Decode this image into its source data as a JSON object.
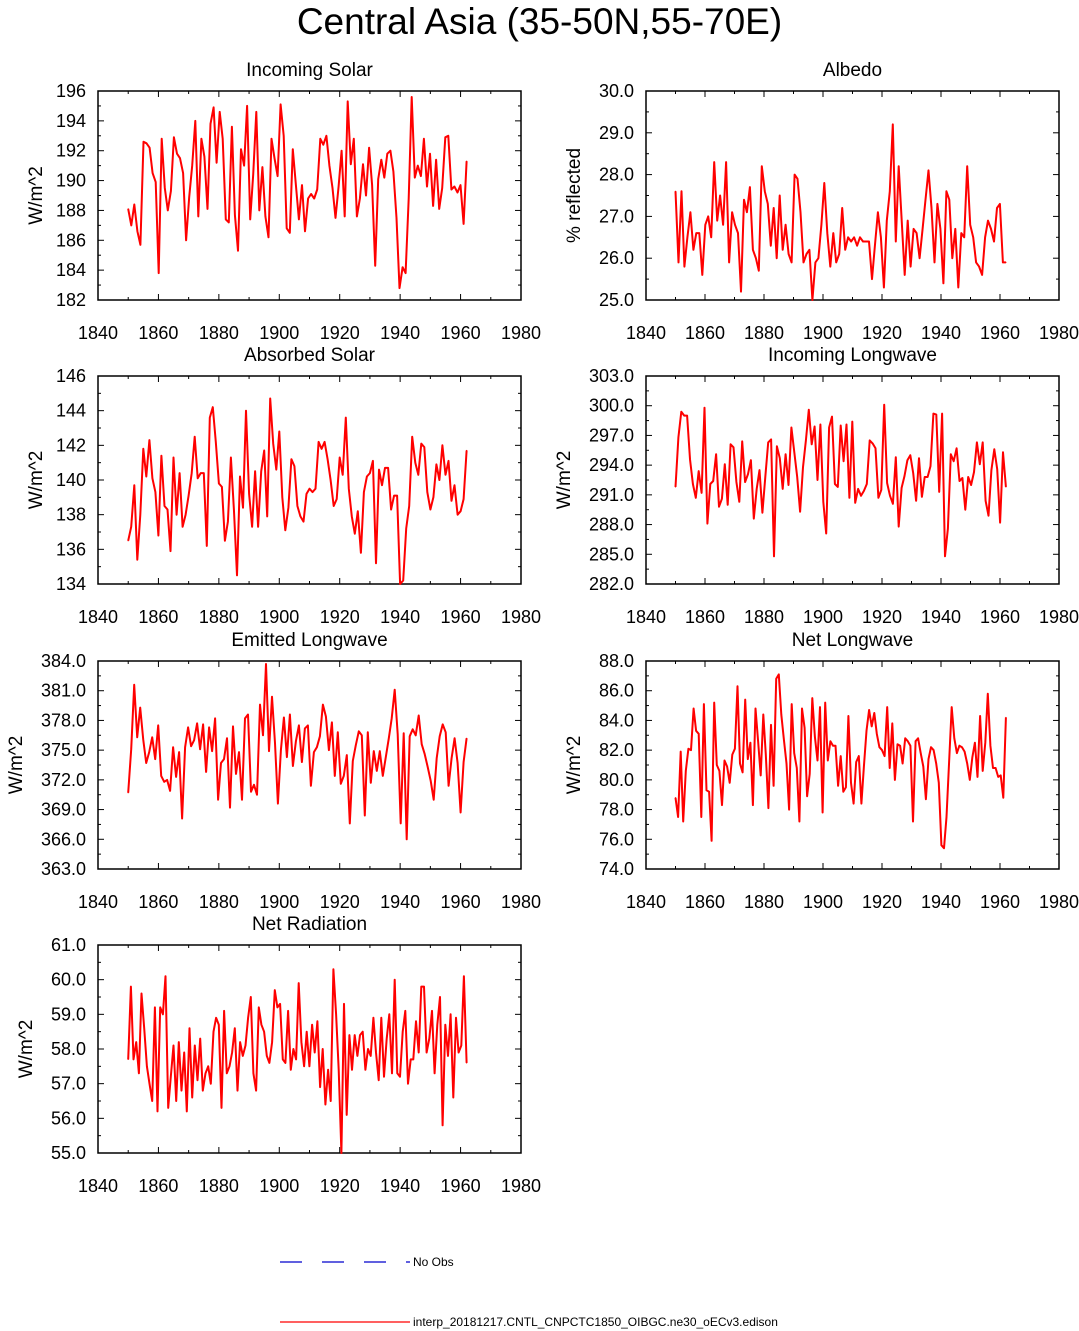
{
  "title": "Central Asia (35-50N,55-70E)",
  "colors": {
    "series": "#ff0000",
    "obs": "#0000cc",
    "axis": "#000000"
  },
  "legend": {
    "obs_label": "No Obs",
    "model_label": "interp_20181217.CNTL_CNPCTC1850_OIBGC.ne30_oECv3.edison"
  },
  "chart_data": [
    {
      "type": "line",
      "title": "Incoming Solar",
      "ylabel": "W/m^2",
      "xlim": [
        1840,
        1980
      ],
      "ylim": [
        182,
        196
      ],
      "xticks": [
        "1840",
        "1860",
        "1880",
        "1900",
        "1920",
        "1940",
        "1960",
        "1980"
      ],
      "yticks": [
        "182",
        "184",
        "186",
        "188",
        "190",
        "192",
        "194",
        "196"
      ],
      "series": [
        {
          "x_start": 1850,
          "values": [
            188.1,
            187.0,
            188.4,
            186.6,
            185.7,
            192.6,
            192.5,
            192.2,
            190.5,
            189.9,
            183.8,
            192.8,
            189.5,
            188.0,
            189.3,
            192.9,
            191.8,
            191.5,
            190.5,
            186.0,
            188.9,
            191.0,
            194.0,
            187.6,
            192.8,
            191.6,
            188.1,
            193.8,
            194.9,
            191.2,
            194.6,
            192.8,
            187.4,
            187.2,
            193.6,
            187.7,
            185.3,
            192.1,
            191.0,
            195.0,
            187.4,
            190.4,
            194.6,
            188.0,
            190.9,
            187.6,
            186.2,
            192.8,
            191.5,
            190.3,
            195.1,
            193.0,
            186.8,
            186.5,
            192.1,
            189.7,
            187.4,
            189.7,
            186.6,
            188.8,
            189.1,
            188.8,
            189.4,
            192.8,
            192.4,
            193.0,
            191.0,
            189.5,
            187.5,
            189.6,
            192.0,
            187.6,
            195.3,
            191.1,
            192.8,
            187.6,
            188.8,
            191.1,
            189.0,
            192.2,
            189.7,
            184.3,
            190.1,
            191.4,
            190.2,
            191.8,
            192.0,
            190.6,
            187.5,
            182.8,
            184.2,
            183.8,
            188.8,
            195.6,
            190.2,
            191.0,
            190.3,
            192.8,
            189.6,
            191.8,
            188.3,
            191.4,
            188.1,
            189.5,
            192.9,
            193.0,
            189.4,
            189.6,
            189.2,
            189.7,
            187.1,
            191.3
          ]
        }
      ]
    },
    {
      "type": "line",
      "title": "Albedo",
      "ylabel": "% reflected",
      "xlim": [
        1840,
        1980
      ],
      "ylim": [
        25,
        30
      ],
      "xticks": [
        "1840",
        "1860",
        "1880",
        "1900",
        "1920",
        "1940",
        "1960",
        "1980"
      ],
      "yticks": [
        "25.0",
        "26.0",
        "27.0",
        "28.0",
        "29.0",
        "30.0"
      ],
      "series": [
        {
          "x_start": 1850,
          "values": [
            27.6,
            25.9,
            27.6,
            25.8,
            26.5,
            27.1,
            26.2,
            26.6,
            26.6,
            25.6,
            26.8,
            27.0,
            26.5,
            28.3,
            26.9,
            27.5,
            26.8,
            28.3,
            25.9,
            27.1,
            26.8,
            26.6,
            25.2,
            27.4,
            27.1,
            27.7,
            26.2,
            26.0,
            25.7,
            28.2,
            27.6,
            27.3,
            26.3,
            27.2,
            26.0,
            27.5,
            26.2,
            26.8,
            26.1,
            25.9,
            28.0,
            27.9,
            27.1,
            25.9,
            26.1,
            26.2,
            25.0,
            25.9,
            26.0,
            26.8,
            27.8,
            26.6,
            25.8,
            26.6,
            25.9,
            26.1,
            27.2,
            26.2,
            26.5,
            26.4,
            26.5,
            26.3,
            26.5,
            26.4,
            26.4,
            26.4,
            25.5,
            26.3,
            27.1,
            26.5,
            25.3,
            26.9,
            27.6,
            29.2,
            26.4,
            28.2,
            26.9,
            25.6,
            26.9,
            25.8,
            26.7,
            26.6,
            26.0,
            26.7,
            27.4,
            28.1,
            27.2,
            25.9,
            27.3,
            26.7,
            25.4,
            27.6,
            27.4,
            26.0,
            26.7,
            25.3,
            26.6,
            26.5,
            28.2,
            26.8,
            26.5,
            25.9,
            25.8,
            25.6,
            26.5,
            26.9,
            26.7,
            26.4,
            27.2,
            27.3,
            25.9,
            25.9
          ]
        }
      ]
    },
    {
      "type": "line",
      "title": "Absorbed Solar",
      "ylabel": "W/m^2",
      "xlim": [
        1840,
        1980
      ],
      "ylim": [
        134,
        146
      ],
      "xticks": [
        "1840",
        "1860",
        "1880",
        "1900",
        "1920",
        "1940",
        "1960",
        "1980"
      ],
      "yticks": [
        "134",
        "136",
        "138",
        "140",
        "142",
        "144",
        "146"
      ],
      "series": [
        {
          "x_start": 1850,
          "values": [
            136.5,
            137.3,
            139.7,
            135.4,
            138.0,
            141.8,
            140.2,
            142.3,
            140.1,
            139.3,
            136.8,
            141.4,
            138.5,
            138.3,
            135.9,
            141.3,
            138.0,
            140.4,
            137.3,
            138.0,
            139.1,
            140.4,
            142.5,
            140.1,
            140.4,
            140.4,
            136.2,
            143.6,
            144.2,
            142.2,
            139.8,
            139.6,
            136.5,
            137.6,
            141.3,
            138.2,
            134.5,
            140.2,
            138.4,
            144.0,
            139.2,
            137.3,
            140.5,
            137.3,
            140.5,
            141.7,
            137.9,
            144.7,
            142.1,
            140.6,
            142.8,
            139.0,
            137.1,
            138.4,
            141.2,
            140.8,
            138.5,
            137.9,
            137.6,
            139.2,
            139.5,
            139.3,
            139.5,
            142.2,
            141.8,
            142.2,
            141.2,
            140.0,
            138.5,
            138.9,
            141.3,
            140.3,
            143.6,
            139.5,
            137.9,
            136.9,
            138.2,
            135.8,
            139.3,
            140.2,
            140.4,
            141.1,
            135.2,
            140.6,
            139.7,
            140.7,
            140.7,
            138.3,
            139.1,
            139.1,
            134.0,
            134.2,
            137.2,
            138.5,
            142.5,
            141.0,
            140.3,
            142.1,
            141.9,
            139.3,
            138.3,
            139.0,
            140.9,
            140.0,
            142.0,
            140.3,
            141.1,
            138.8,
            139.7,
            138.0,
            138.2,
            138.9,
            141.7
          ]
        }
      ]
    },
    {
      "type": "line",
      "title": "Incoming Longwave",
      "ylabel": "W/m^2",
      "xlim": [
        1840,
        1980
      ],
      "ylim": [
        282,
        303
      ],
      "xticks": [
        "1840",
        "1860",
        "1880",
        "1900",
        "1920",
        "1940",
        "1960",
        "1980"
      ],
      "yticks": [
        "282.0",
        "285.0",
        "288.0",
        "291.0",
        "294.0",
        "297.0",
        "300.0",
        "303.0"
      ],
      "series": [
        {
          "x_start": 1850,
          "values": [
            291.8,
            296.8,
            299.4,
            299.0,
            299.0,
            294.6,
            292.1,
            290.7,
            293.4,
            291.2,
            299.8,
            288.1,
            292.1,
            292.4,
            295.1,
            289.8,
            290.6,
            294.1,
            290.0,
            296.1,
            295.8,
            292.3,
            290.3,
            296.4,
            292.3,
            293.1,
            294.5,
            288.6,
            291.6,
            293.5,
            289.2,
            292.8,
            296.3,
            296.6,
            284.8,
            295.9,
            294.7,
            291.6,
            295.1,
            292.0,
            297.8,
            295.3,
            292.8,
            289.3,
            293.8,
            296.5,
            299.6,
            296.1,
            297.9,
            292.5,
            298.1,
            290.3,
            287.1,
            297.8,
            298.9,
            292.1,
            291.8,
            298.0,
            294.4,
            298.1,
            290.7,
            298.4,
            290.2,
            291.6,
            290.9,
            291.4,
            292.1,
            296.5,
            296.2,
            295.7,
            290.7,
            291.5,
            300.1,
            292.2,
            290.9,
            290.1,
            294.8,
            287.8,
            291.7,
            292.9,
            294.5,
            295.0,
            293.2,
            290.4,
            294.7,
            290.8,
            292.8,
            292.8,
            293.9,
            299.2,
            299.1,
            291.3,
            299.2,
            284.8,
            287.6,
            295.1,
            294.4,
            295.7,
            292.4,
            292.7,
            289.5,
            292.8,
            292.0,
            293.3,
            296.3,
            294.1,
            296.3,
            290.4,
            288.9,
            293.5,
            295.6,
            293.6,
            288.2,
            295.3,
            291.8
          ]
        }
      ]
    },
    {
      "type": "line",
      "title": "Emitted Longwave",
      "ylabel": "W/m^2",
      "xlim": [
        1840,
        1980
      ],
      "ylim": [
        363,
        384
      ],
      "xticks": [
        "1840",
        "1860",
        "1880",
        "1900",
        "1920",
        "1940",
        "1960",
        "1980"
      ],
      "yticks": [
        "363.0",
        "366.0",
        "369.0",
        "372.0",
        "375.0",
        "378.0",
        "381.0",
        "384.0"
      ],
      "series": [
        {
          "x_start": 1850,
          "values": [
            370.7,
            375.1,
            381.6,
            376.3,
            379.3,
            376.1,
            373.7,
            374.8,
            376.3,
            374.1,
            377.5,
            372.4,
            371.8,
            372.0,
            370.9,
            375.3,
            372.3,
            374.8,
            368.1,
            375.3,
            377.3,
            375.4,
            376.0,
            377.7,
            375.1,
            377.6,
            372.8,
            377.3,
            374.9,
            378.2,
            370.0,
            373.7,
            374.1,
            376.2,
            369.2,
            377.4,
            372.6,
            374.8,
            370.0,
            378.2,
            378.6,
            370.8,
            371.5,
            370.5,
            379.6,
            376.5,
            383.7,
            374.9,
            380.4,
            375.7,
            369.6,
            375.0,
            378.3,
            374.3,
            378.6,
            373.4,
            375.9,
            377.5,
            373.8,
            377.2,
            377.5,
            371.4,
            374.8,
            375.3,
            376.4,
            379.6,
            378.4,
            375.0,
            377.8,
            372.4,
            376.8,
            371.6,
            372.4,
            374.5,
            367.6,
            373.9,
            375.5,
            376.9,
            376.5,
            368.4,
            376.8,
            371.7,
            374.9,
            372.9,
            374.9,
            372.4,
            374.3,
            376.2,
            378.2,
            381.1,
            376.6,
            367.6,
            376.7,
            366.0,
            376.4,
            377.1,
            376.5,
            378.5,
            375.6,
            374.6,
            373.3,
            371.9,
            370.0,
            374.2,
            376.4,
            377.6,
            376.8,
            371.4,
            374.2,
            376.2,
            373.7,
            368.7,
            373.8,
            376.2
          ]
        }
      ]
    },
    {
      "type": "line",
      "title": "Net Longwave",
      "ylabel": "W/m^2",
      "xlim": [
        1840,
        1980
      ],
      "ylim": [
        74,
        88
      ],
      "xticks": [
        "1840",
        "1860",
        "1880",
        "1900",
        "1920",
        "1940",
        "1960",
        "1980"
      ],
      "yticks": [
        "74.0",
        "76.0",
        "78.0",
        "80.0",
        "82.0",
        "84.0",
        "86.0",
        "88.0"
      ],
      "series": [
        {
          "x_start": 1850,
          "values": [
            78.8,
            77.5,
            81.9,
            77.2,
            80.6,
            82.1,
            82.0,
            84.8,
            83.3,
            83.1,
            77.5,
            85.1,
            79.3,
            79.2,
            75.9,
            85.2,
            81.0,
            80.6,
            78.3,
            81.3,
            80.9,
            79.8,
            81.7,
            82.1,
            86.3,
            81.1,
            80.5,
            85.4,
            81.4,
            82.5,
            78.3,
            84.8,
            82.6,
            80.3,
            84.4,
            81.7,
            78.1,
            83.7,
            79.6,
            86.8,
            87.1,
            84.4,
            82.7,
            81.1,
            78.0,
            85.1,
            81.8,
            80.8,
            77.2,
            84.8,
            83.5,
            78.9,
            80.4,
            85.5,
            82.9,
            81.3,
            84.9,
            77.8,
            85.2,
            81.3,
            82.6,
            82.3,
            82.3,
            79.6,
            81.6,
            79.2,
            79.5,
            84.3,
            79.8,
            78.4,
            81.2,
            81.6,
            78.4,
            80.9,
            83.3,
            84.7,
            83.6,
            84.5,
            83.1,
            82.2,
            82.0,
            81.6,
            84.9,
            80.8,
            83.8,
            80.0,
            82.4,
            82.3,
            81.1,
            82.8,
            82.6,
            82.3,
            77.2,
            82.6,
            82.8,
            81.8,
            80.9,
            78.7,
            81.4,
            82.2,
            82.0,
            81.1,
            79.8,
            75.6,
            75.4,
            77.5,
            81.2,
            84.9,
            82.8,
            81.8,
            82.3,
            82.2,
            81.9,
            81.1,
            80.0,
            81.5,
            82.5,
            80.2,
            84.3,
            80.6,
            82.5,
            85.8,
            82.3,
            80.8,
            80.8,
            80.2,
            80.3,
            78.8,
            84.2
          ]
        }
      ]
    },
    {
      "type": "line",
      "title": "Net Radiation",
      "ylabel": "W/m^2",
      "xlim": [
        1840,
        1980
      ],
      "ylim": [
        55,
        61
      ],
      "xticks": [
        "1840",
        "1860",
        "1880",
        "1900",
        "1920",
        "1940",
        "1960",
        "1980"
      ],
      "yticks": [
        "55.0",
        "56.0",
        "57.0",
        "58.0",
        "59.0",
        "60.0",
        "61.0"
      ],
      "series": [
        {
          "x_start": 1850,
          "values": [
            57.7,
            59.8,
            57.7,
            58.2,
            57.3,
            59.6,
            58.6,
            57.5,
            57.0,
            56.5,
            59.2,
            56.2,
            59.2,
            59.0,
            60.1,
            56.3,
            57.2,
            58.1,
            56.5,
            58.2,
            56.8,
            57.9,
            56.2,
            58.6,
            56.6,
            58.1,
            57.1,
            58.3,
            56.8,
            57.3,
            57.5,
            57.0,
            58.5,
            58.9,
            58.7,
            56.3,
            59.1,
            57.3,
            57.5,
            57.9,
            58.6,
            56.8,
            58.2,
            57.8,
            58.1,
            58.9,
            59.5,
            57.3,
            56.8,
            59.2,
            58.7,
            58.5,
            57.8,
            57.6,
            58.2,
            59.7,
            59.2,
            59.3,
            57.7,
            57.6,
            59.1,
            57.4,
            58.0,
            57.7,
            59.9,
            58.2,
            57.5,
            58.5,
            57.5,
            58.7,
            57.9,
            58.8,
            56.9,
            58.0,
            56.4,
            57.4,
            56.5,
            60.3,
            59.0,
            57.4,
            55.0,
            59.3,
            56.1,
            58.4,
            57.4,
            58.4,
            57.8,
            58.4,
            58.5,
            57.4,
            58.0,
            57.8,
            58.9,
            57.9,
            57.1,
            58.9,
            57.2,
            58.3,
            59.0,
            57.3,
            60.0,
            57.3,
            57.2,
            58.5,
            59.1,
            57.0,
            57.7,
            57.7,
            58.8,
            57.9,
            59.8,
            59.8,
            57.9,
            58.3,
            59.1,
            57.3,
            58.7,
            59.5,
            55.8,
            58.7,
            57.8,
            59.0,
            56.6,
            58.9,
            57.9,
            58.1,
            60.1,
            57.6
          ]
        }
      ]
    }
  ]
}
